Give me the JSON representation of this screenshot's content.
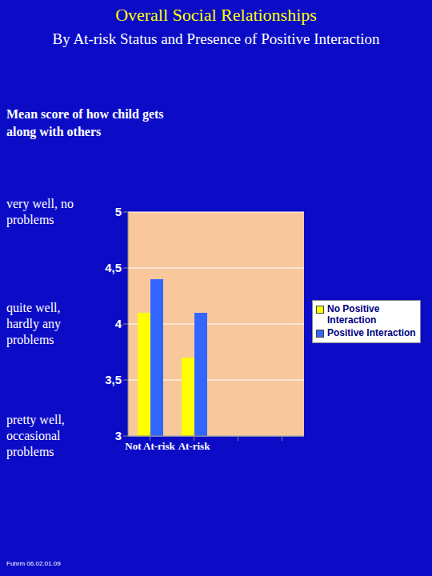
{
  "chart_data": {
    "type": "bar",
    "title": "Overall Social Relationships",
    "subtitle": "By At-risk Status and Presence of Positive Interaction",
    "ylabel": "Mean score of how child gets along with others",
    "categories": [
      "Not At-risk",
      "At-risk",
      null,
      null
    ],
    "series": [
      {
        "name": "No Positive Interaction",
        "color": "#ffff00",
        "values": [
          4.1,
          3.7,
          null,
          null
        ]
      },
      {
        "name": "Positive Interaction",
        "color": "#3366ff",
        "values": [
          4.4,
          4.1,
          null,
          null
        ]
      }
    ],
    "ylim": [
      3,
      5
    ],
    "yticks": [
      3,
      {
        "value": 3.5,
        "label": "3,5"
      },
      4,
      {
        "value": 4.5,
        "label": "4,5"
      },
      5
    ],
    "annotations": [
      {
        "y": 5,
        "text": "very well, no problems"
      },
      {
        "y": 4,
        "text": "quite well, hardly any problems"
      },
      {
        "y": 3,
        "text": "pretty well, occasional problems"
      }
    ],
    "footnote": "Fuhrm 06.02.01.09",
    "grid": true,
    "legend": "right"
  }
}
